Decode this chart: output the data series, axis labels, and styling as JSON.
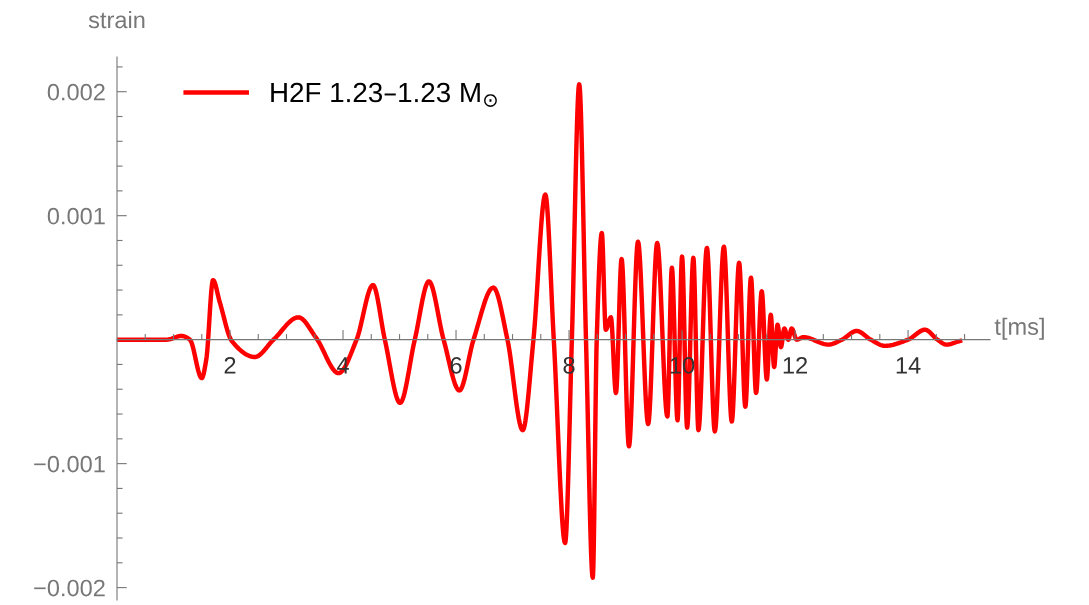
{
  "chart_data": {
    "type": "line",
    "xlabel": "t[ms]",
    "ylabel": "strain",
    "legend": "top left",
    "grid": false,
    "marker": "none",
    "line_style": "solid",
    "xlim": [
      0,
      15.45
    ],
    "ylim": [
      -0.0021,
      0.00228
    ],
    "xticks": [
      {
        "value": 0.5,
        "label": null
      },
      {
        "value": 1,
        "label": null
      },
      {
        "value": 1.5,
        "label": null
      },
      2,
      {
        "value": 2.5,
        "label": null
      },
      {
        "value": 3,
        "label": null
      },
      {
        "value": 3.5,
        "label": null
      },
      4,
      {
        "value": 4.5,
        "label": null
      },
      {
        "value": 5,
        "label": null
      },
      {
        "value": 5.5,
        "label": null
      },
      6,
      {
        "value": 6.5,
        "label": null
      },
      {
        "value": 7,
        "label": null
      },
      {
        "value": 7.5,
        "label": null
      },
      8,
      {
        "value": 8.5,
        "label": null
      },
      {
        "value": 9,
        "label": null
      },
      {
        "value": 9.5,
        "label": null
      },
      10,
      {
        "value": 10.5,
        "label": null
      },
      {
        "value": 11,
        "label": null
      },
      {
        "value": 11.5,
        "label": null
      },
      12,
      {
        "value": 12.5,
        "label": null
      },
      {
        "value": 13,
        "label": null
      },
      {
        "value": 13.5,
        "label": null
      },
      14,
      {
        "value": 14.5,
        "label": null
      },
      {
        "value": 15,
        "label": null
      }
    ],
    "yticks": [
      {
        "value": -0.002,
        "label": "−0.002"
      },
      {
        "value": -0.0018,
        "label": null
      },
      {
        "value": -0.0016,
        "label": null
      },
      {
        "value": -0.0014,
        "label": null
      },
      {
        "value": -0.0012,
        "label": null
      },
      {
        "value": -0.001,
        "label": "−0.001"
      },
      {
        "value": -0.0008,
        "label": null
      },
      {
        "value": -0.0006,
        "label": null
      },
      {
        "value": -0.0004,
        "label": null
      },
      {
        "value": -0.0002,
        "label": null
      },
      {
        "value": 0.0002,
        "label": null
      },
      {
        "value": 0.0004,
        "label": null
      },
      {
        "value": 0.0006,
        "label": null
      },
      {
        "value": 0.0008,
        "label": null
      },
      0.001,
      {
        "value": 0.0012,
        "label": null
      },
      {
        "value": 0.0014,
        "label": null
      },
      {
        "value": 0.0016,
        "label": null
      },
      {
        "value": 0.0018,
        "label": null
      },
      0.002,
      {
        "value": 0.0022,
        "label": null
      }
    ],
    "series": [
      {
        "name": "H2F 1.23–1.23 M$_{⊙}$",
        "color": "#ff0000",
        "x": [
          0,
          0.53,
          0.88,
          1.14,
          1.29,
          1.5,
          1.58,
          1.7,
          1.82,
          2.03,
          2.44,
          2.77,
          3.21,
          3.53,
          3.92,
          4.24,
          4.53,
          4.74,
          5.01,
          5.27,
          5.52,
          5.78,
          6.06,
          6.31,
          6.66,
          6.91,
          7.18,
          7.37,
          7.58,
          7.73,
          7.93,
          8.05,
          8.18,
          8.3,
          8.42,
          8.49,
          8.58,
          8.65,
          8.74,
          8.83,
          8.93,
          9.06,
          9.22,
          9.4,
          9.56,
          9.74,
          9.82,
          9.92,
          10.0,
          10.09,
          10.2,
          10.29,
          10.44,
          10.58,
          10.74,
          10.88,
          11.01,
          11.12,
          11.22,
          11.31,
          11.41,
          11.5,
          11.57,
          11.63,
          11.69,
          11.75,
          11.81,
          11.88,
          11.94,
          12.03,
          12.15,
          12.59,
          12.83,
          13.09,
          13.34,
          13.59,
          14.0,
          14.3,
          14.52,
          14.68,
          14.92
        ],
        "values": [
          0,
          0,
          0,
          3e-05,
          0,
          -0.00031,
          -0.00016,
          0.00048,
          0.0003,
          -1e-05,
          -0.00014,
          0,
          0.00018,
          1e-05,
          -0.00027,
          0,
          0.00044,
          0,
          -0.00051,
          0,
          0.00047,
          0,
          -0.00041,
          0,
          0.00042,
          0,
          -0.00073,
          0,
          0.00117,
          0,
          -0.00164,
          0,
          0.00206,
          0,
          -0.00192,
          0,
          0.00086,
          8e-05,
          0.00018,
          -0.00043,
          0.00065,
          -0.00086,
          0.00079,
          -0.00068,
          0.00078,
          -0.00062,
          0.00058,
          -0.00065,
          0.00067,
          -0.00071,
          0.00066,
          -0.00073,
          0.00074,
          -0.00074,
          0.00075,
          -0.00066,
          0.00062,
          -0.00054,
          0.0005,
          -0.00043,
          0.00039,
          -0.00032,
          0.0002,
          -0.00022,
          0.00012,
          -6e-05,
          9e-05,
          0,
          9e-05,
          0,
          2e-05,
          -4e-05,
          0,
          7e-05,
          0,
          -5e-05,
          0,
          8e-05,
          0,
          -4e-05,
          -1e-05
        ]
      }
    ]
  }
}
